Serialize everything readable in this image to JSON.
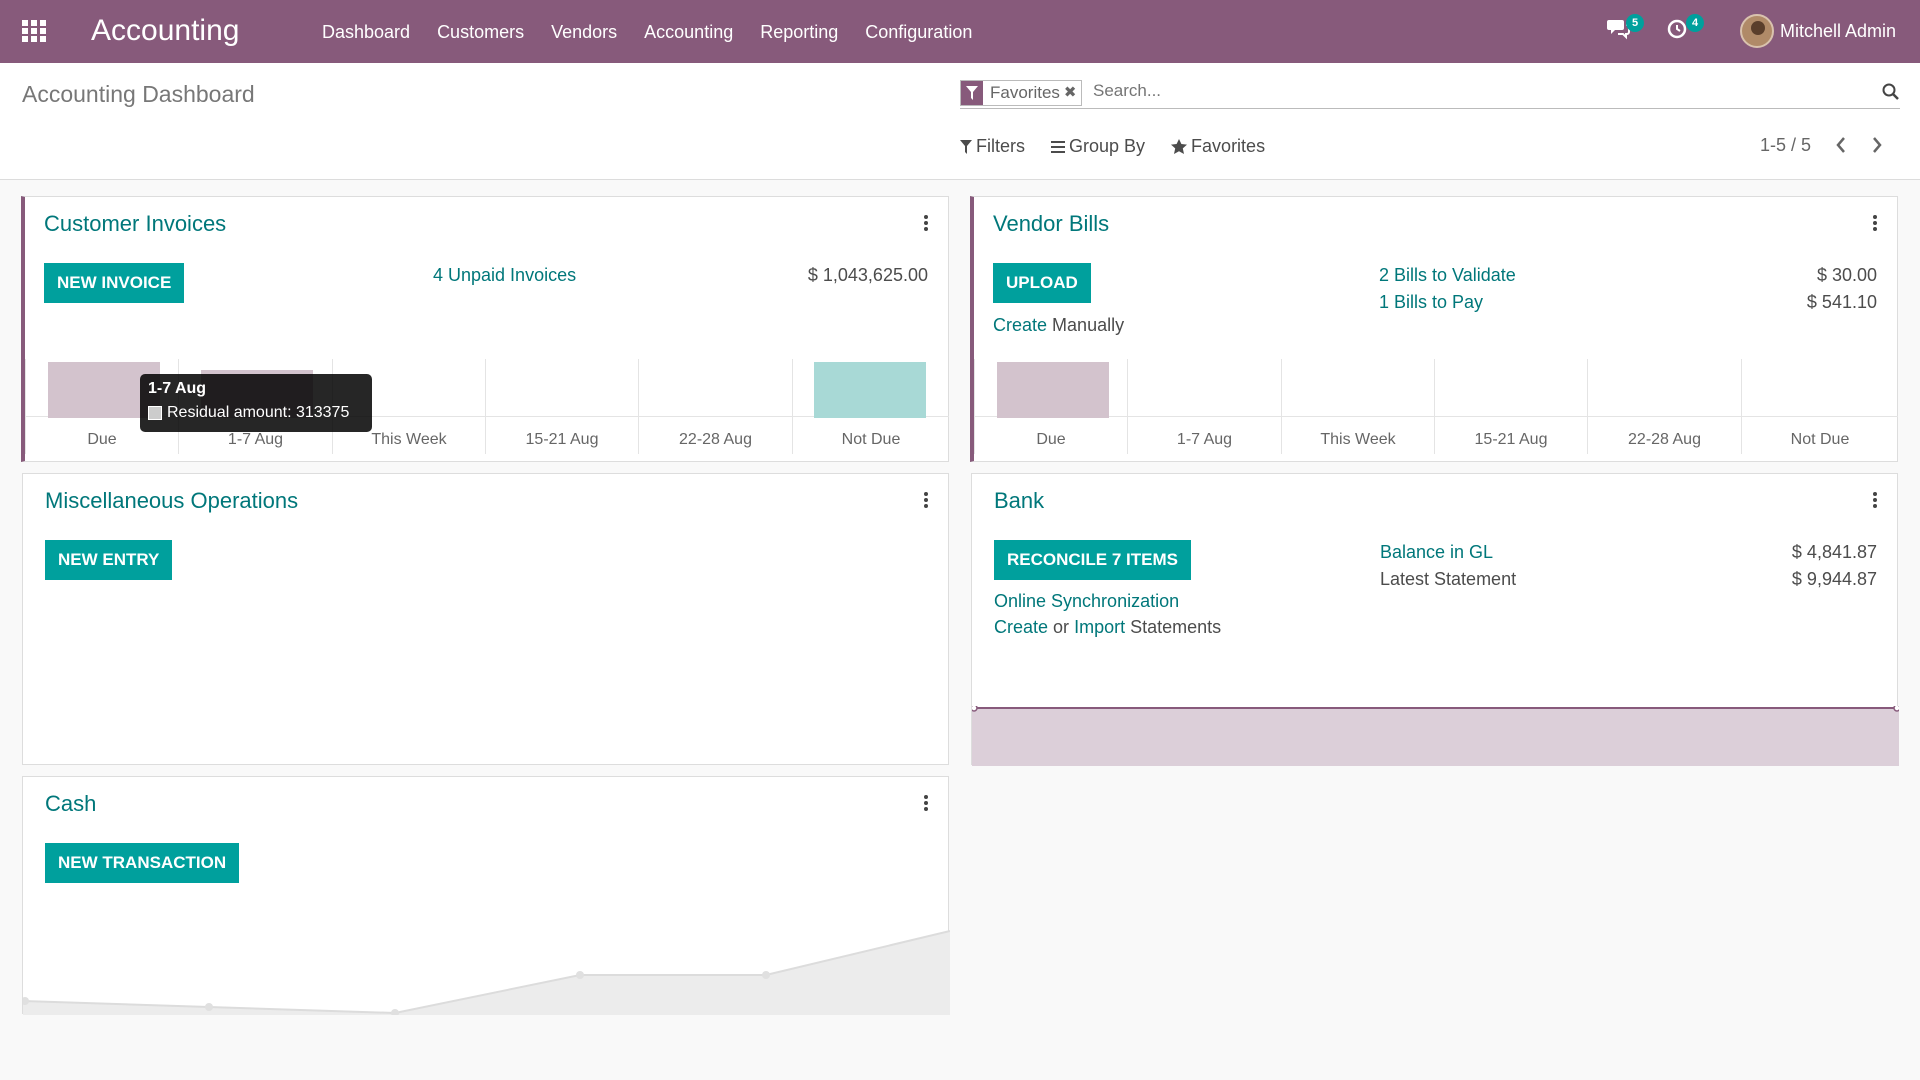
{
  "navbar": {
    "brand": "Accounting",
    "menu": [
      "Dashboard",
      "Customers",
      "Vendors",
      "Accounting",
      "Reporting",
      "Configuration"
    ],
    "messages_badge": "5",
    "activities_badge": "4",
    "user_name": "Mitchell Admin"
  },
  "control": {
    "title": "Accounting Dashboard",
    "facet_label": "Favorites",
    "search_placeholder": "Search...",
    "filters_label": "Filters",
    "groupby_label": "Group By",
    "favorites_label": "Favorites",
    "pager": "1-5 / 5"
  },
  "customer_invoices": {
    "title": "Customer Invoices",
    "button": "NEW INVOICE",
    "unpaid_link": "4 Unpaid Invoices",
    "amount": "$ 1,043,625.00",
    "chart_labels": [
      "Due",
      "1-7 Aug",
      "This Week",
      "15-21 Aug",
      "22-28 Aug",
      "Not Due"
    ],
    "tooltip_title": "1-7 Aug",
    "tooltip_value": "Residual amount: 313375"
  },
  "vendor_bills": {
    "title": "Vendor Bills",
    "button": "UPLOAD",
    "create_link": "Create",
    "create_text": "Manually",
    "validate_link": "2 Bills to Validate",
    "pay_link": "1 Bills to Pay",
    "validate_amount": "$ 30.00",
    "pay_amount": "$ 541.10",
    "chart_labels": [
      "Due",
      "1-7 Aug",
      "This Week",
      "15-21 Aug",
      "22-28 Aug",
      "Not Due"
    ]
  },
  "misc": {
    "title": "Miscellaneous Operations",
    "button": "NEW ENTRY"
  },
  "bank": {
    "title": "Bank",
    "button": "RECONCILE 7 ITEMS",
    "sync_link": "Online Synchronization",
    "create_link": "Create",
    "or_text": "or",
    "import_link": "Import",
    "statements_text": "Statements",
    "balance_link": "Balance in GL",
    "latest_text": "Latest Statement",
    "balance_amount": "$ 4,841.87",
    "latest_amount": "$ 9,944.87"
  },
  "cash": {
    "title": "Cash",
    "button": "NEW TRANSACTION"
  },
  "colors": {
    "brand": "#875a7b",
    "accent": "#00a09d",
    "link": "#00777a",
    "due_bar": "#d3c3cd",
    "notdue_bar": "#a8d9d6"
  }
}
